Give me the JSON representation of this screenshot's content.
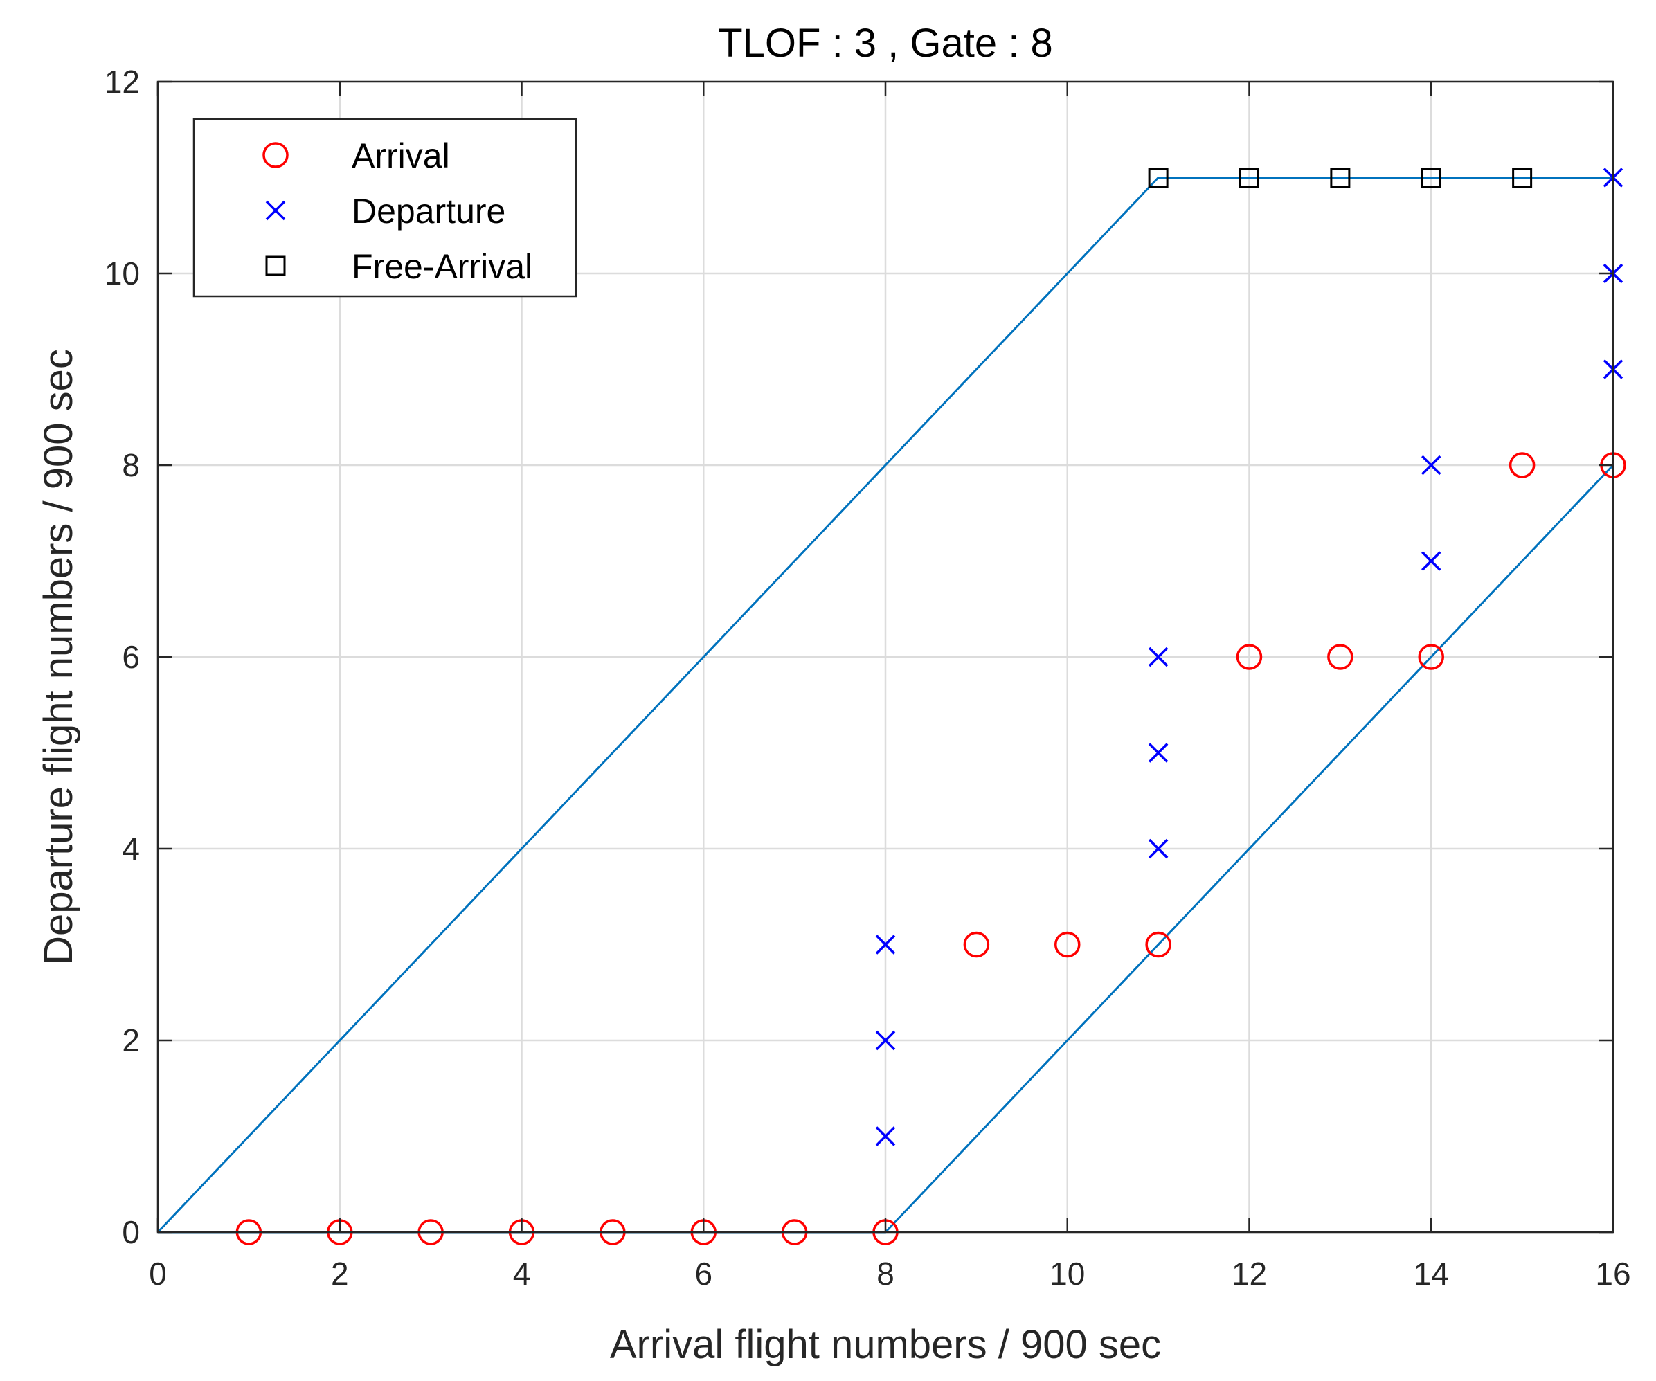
{
  "chart_data": {
    "type": "scatter",
    "title": "TLOF : 3 , Gate : 8",
    "xlabel": "Arrival flight numbers / 900 sec",
    "ylabel": "Departure flight numbers / 900 sec",
    "xlim": [
      0,
      16
    ],
    "ylim": [
      0,
      12
    ],
    "xticks": [
      "0",
      "2",
      "4",
      "6",
      "8",
      "10",
      "12",
      "14",
      "16"
    ],
    "yticks": [
      "0",
      "2",
      "4",
      "6",
      "8",
      "10",
      "12"
    ],
    "grid": true,
    "legend_position": "top-left",
    "boundary": {
      "color": "#0072BD",
      "x": [
        0,
        11,
        16,
        16,
        8,
        0
      ],
      "y": [
        0,
        11,
        11,
        8,
        0,
        0
      ]
    },
    "series": [
      {
        "name": "Arrival",
        "marker": "circle",
        "color": "#FF0000",
        "points": [
          [
            1,
            0
          ],
          [
            2,
            0
          ],
          [
            3,
            0
          ],
          [
            4,
            0
          ],
          [
            5,
            0
          ],
          [
            6,
            0
          ],
          [
            7,
            0
          ],
          [
            8,
            0
          ],
          [
            9,
            3
          ],
          [
            10,
            3
          ],
          [
            11,
            3
          ],
          [
            12,
            6
          ],
          [
            13,
            6
          ],
          [
            14,
            6
          ],
          [
            15,
            8
          ],
          [
            16,
            8
          ]
        ]
      },
      {
        "name": "Departure",
        "marker": "x",
        "color": "#0000FF",
        "points": [
          [
            8,
            1
          ],
          [
            8,
            2
          ],
          [
            8,
            3
          ],
          [
            11,
            4
          ],
          [
            11,
            5
          ],
          [
            11,
            6
          ],
          [
            14,
            7
          ],
          [
            14,
            8
          ],
          [
            16,
            9
          ],
          [
            16,
            10
          ],
          [
            16,
            11
          ]
        ]
      },
      {
        "name": "Free-Arrival",
        "marker": "square",
        "color": "#000000",
        "points": [
          [
            11,
            11
          ],
          [
            12,
            11
          ],
          [
            13,
            11
          ],
          [
            14,
            11
          ],
          [
            15,
            11
          ]
        ]
      }
    ]
  }
}
